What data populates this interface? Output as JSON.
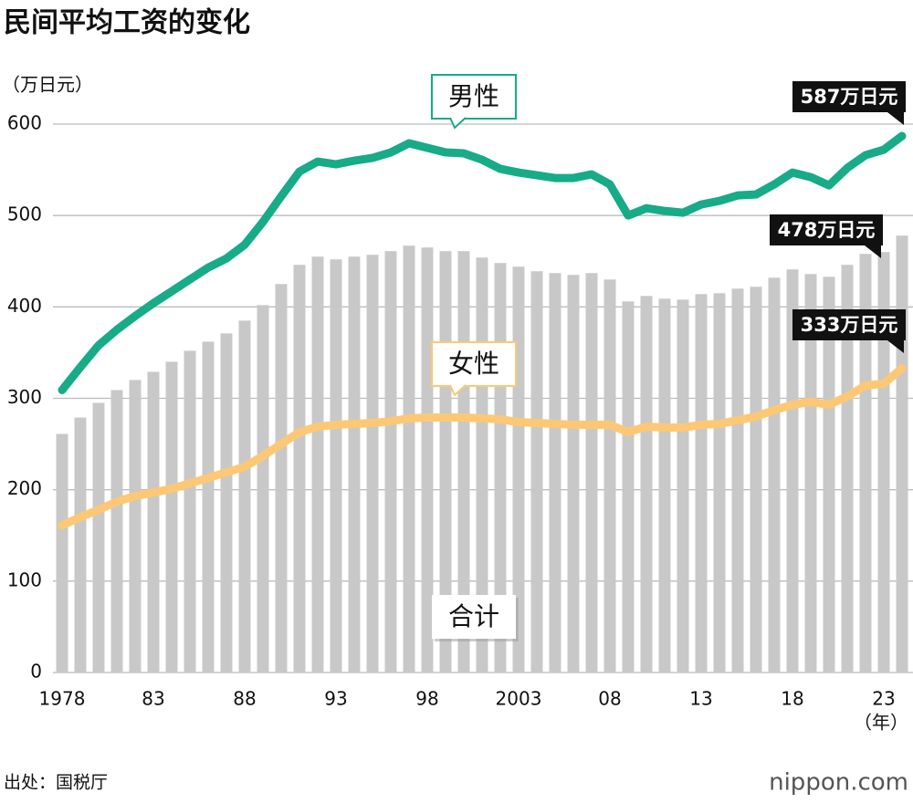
{
  "chart_data": {
    "type": "bar-line",
    "title": "民间平均工资的变化",
    "y_unit": "（万日元）",
    "x_unit": "（年）",
    "source": "出处：国税厅",
    "logo": "nippon.com",
    "categories": [
      "1978",
      null,
      null,
      null,
      null,
      "83",
      null,
      null,
      null,
      null,
      "88",
      null,
      null,
      null,
      null,
      "93",
      null,
      null,
      null,
      null,
      "98",
      null,
      null,
      null,
      null,
      "2003",
      null,
      null,
      null,
      null,
      "08",
      null,
      null,
      null,
      null,
      "13",
      null,
      null,
      null,
      null,
      "18",
      null,
      null,
      null,
      null,
      "23",
      null
    ],
    "series": [
      {
        "name": "合计",
        "color": "#c8c8c8",
        "kind": "bar",
        "values": [
          261,
          279,
          295,
          309,
          320,
          329,
          340,
          352,
          362,
          371,
          385,
          402,
          425,
          446,
          455,
          452,
          455,
          457,
          461,
          467,
          465,
          461,
          461,
          454,
          448,
          444,
          439,
          437,
          435,
          437,
          430,
          406,
          412,
          409,
          408,
          414,
          415,
          420,
          422,
          432,
          441,
          436,
          433,
          446,
          458,
          460,
          478
        ],
        "value_labels": [
          null,
          null,
          null,
          null,
          null,
          null,
          null,
          null,
          null,
          null,
          null,
          null,
          null,
          null,
          null,
          null,
          null,
          null,
          null,
          null,
          null,
          null,
          null,
          null,
          null,
          null,
          null,
          null,
          null,
          null,
          null,
          null,
          null,
          null,
          null,
          null,
          null,
          null,
          null,
          null,
          null,
          null,
          null,
          null,
          null,
          null,
          "478万日元"
        ]
      },
      {
        "name": "男性",
        "color": "#17ab88",
        "kind": "line",
        "values": [
          309,
          334,
          358,
          375,
          390,
          404,
          417,
          430,
          443,
          453,
          468,
          493,
          521,
          548,
          559,
          556,
          560,
          563,
          569,
          579,
          574,
          569,
          568,
          561,
          551,
          547,
          544,
          541,
          541,
          545,
          534,
          500,
          508,
          505,
          503,
          512,
          516,
          522,
          523,
          534,
          547,
          542,
          533,
          552,
          566,
          572,
          587
        ],
        "value_labels": [
          null,
          null,
          null,
          null,
          null,
          null,
          null,
          null,
          null,
          null,
          null,
          null,
          null,
          null,
          null,
          null,
          null,
          null,
          null,
          null,
          null,
          null,
          null,
          null,
          null,
          null,
          null,
          null,
          null,
          null,
          null,
          null,
          null,
          null,
          null,
          null,
          null,
          null,
          null,
          null,
          null,
          null,
          null,
          null,
          null,
          null,
          "587万日元"
        ]
      },
      {
        "name": "女性",
        "color": "#fdc875",
        "kind": "line",
        "values": [
          161,
          170,
          178,
          187,
          193,
          197,
          201,
          207,
          213,
          219,
          225,
          237,
          250,
          263,
          269,
          271,
          272,
          273,
          275,
          278,
          279,
          279,
          279,
          278,
          277,
          274,
          273,
          272,
          271,
          271,
          271,
          263,
          269,
          268,
          268,
          271,
          272,
          276,
          280,
          287,
          293,
          296,
          293,
          302,
          314,
          316,
          333
        ],
        "value_labels": [
          null,
          null,
          null,
          null,
          null,
          null,
          null,
          null,
          null,
          null,
          null,
          null,
          null,
          null,
          null,
          null,
          null,
          null,
          null,
          null,
          null,
          null,
          null,
          null,
          null,
          null,
          null,
          null,
          null,
          null,
          null,
          null,
          null,
          null,
          null,
          null,
          null,
          null,
          null,
          null,
          null,
          null,
          null,
          null,
          null,
          null,
          "333万日元"
        ]
      }
    ],
    "ylim": [
      0,
      600
    ],
    "yticks": [
      0,
      100,
      200,
      300,
      400,
      500,
      600
    ],
    "grid": true
  }
}
